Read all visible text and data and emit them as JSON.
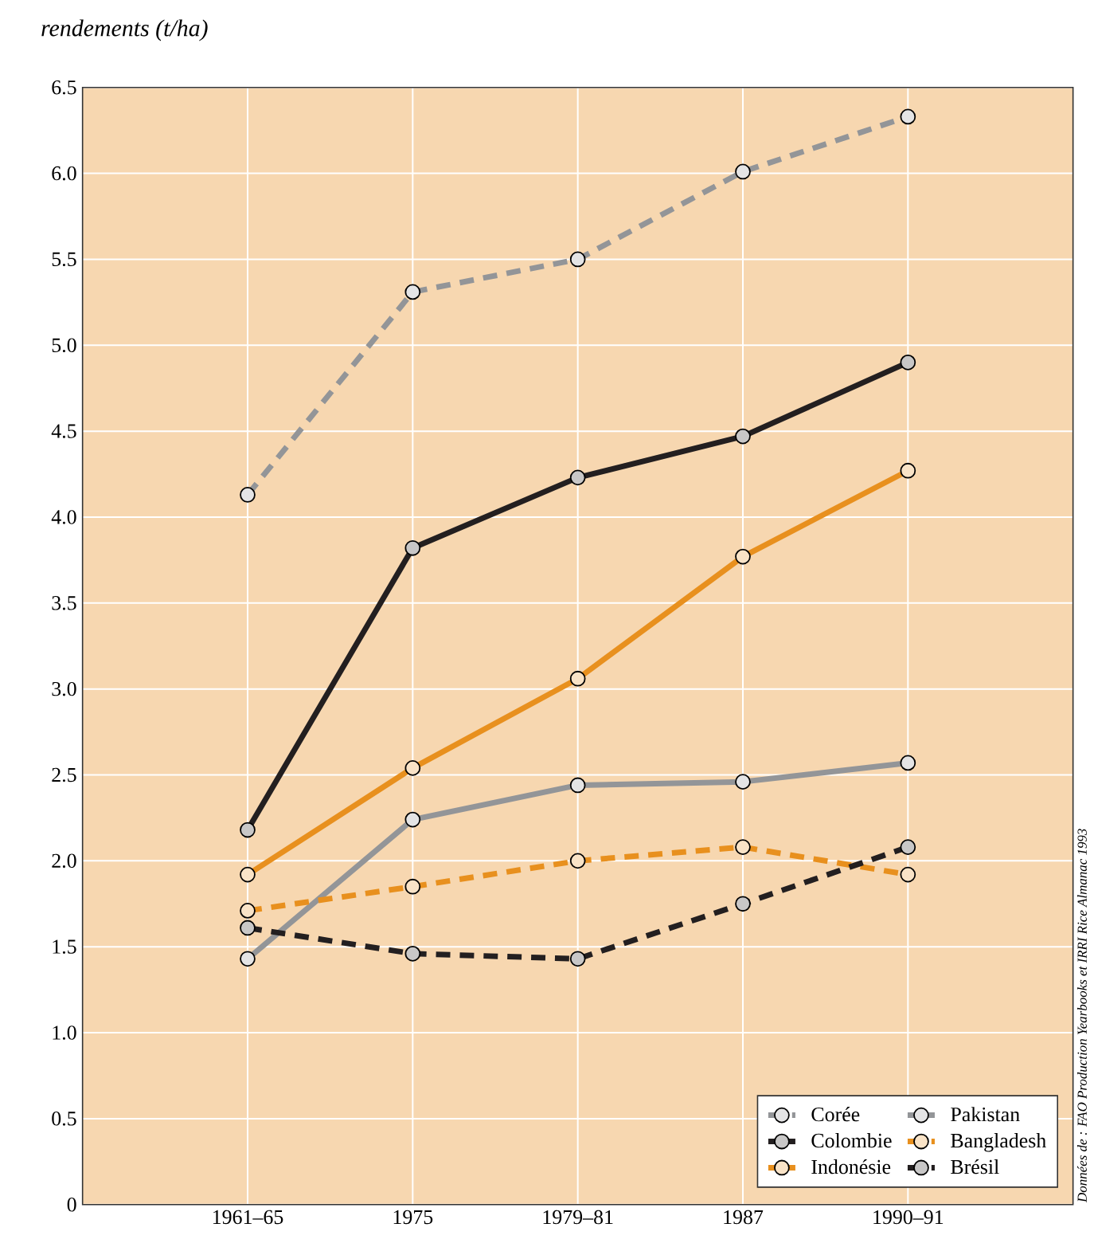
{
  "chart_data": {
    "type": "line",
    "ylabel": "rendements (t/ha)",
    "categories": [
      "1961–65",
      "1975",
      "1979–81",
      "1987",
      "1990–91"
    ],
    "series": [
      {
        "name": "Corée",
        "color": "#939598",
        "line_style": "dashed",
        "values": [
          4.13,
          5.31,
          5.5,
          6.01,
          6.33
        ]
      },
      {
        "name": "Colombie",
        "color": "#231f20",
        "line_style": "solid",
        "values": [
          2.18,
          3.82,
          4.23,
          4.47,
          4.9
        ]
      },
      {
        "name": "Indonésie",
        "color": "#e8901e",
        "line_style": "solid",
        "values": [
          1.92,
          2.54,
          3.06,
          3.77,
          4.27
        ]
      },
      {
        "name": "Pakistan",
        "color": "#939598",
        "line_style": "solid",
        "values": [
          1.43,
          2.24,
          2.44,
          2.46,
          2.57
        ]
      },
      {
        "name": "Bangladesh",
        "color": "#e8901e",
        "line_style": "dashed",
        "values": [
          1.71,
          1.85,
          2.0,
          2.08,
          1.92
        ]
      },
      {
        "name": "Brésil",
        "color": "#231f20",
        "line_style": "dashed",
        "values": [
          1.61,
          1.46,
          1.43,
          1.75,
          2.08
        ]
      }
    ],
    "ylim": [
      0,
      6.5
    ],
    "yticks": [
      0,
      0.5,
      {
        "value": 1,
        "label": "1.0"
      },
      1.5,
      {
        "value": 2,
        "label": "2.0"
      },
      2.5,
      {
        "value": 3,
        "label": "3.0"
      },
      3.5,
      {
        "value": 4,
        "label": "4.0"
      },
      4.5,
      {
        "value": 5,
        "label": "5.0"
      },
      5.5,
      {
        "value": 6,
        "label": "6.0"
      },
      6.5
    ],
    "grid": true,
    "legend": "bottom right",
    "marker": "circle",
    "annotations": [
      "Données de : FAO Production Yearbooks et IRRI Rice Almanac 1993"
    ]
  }
}
